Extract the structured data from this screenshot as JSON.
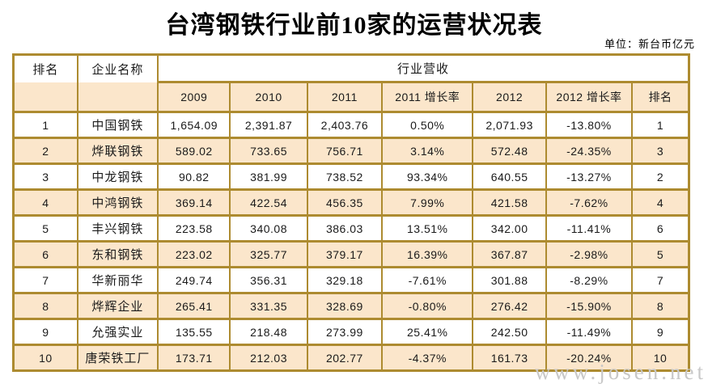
{
  "title": "台湾钢铁行业前10家的运营状况表",
  "unit_note": "单位：新台币亿元",
  "watermark": "www.josen.net",
  "colors": {
    "border": "#AD8B30",
    "band_fill": "#FBE6CB",
    "watermark": "#C8C8C8",
    "text": "#000000"
  },
  "chart_data": {
    "type": "table",
    "title": "台湾钢铁行业前10家的运营状况表",
    "unit": "新台币亿元",
    "header": {
      "rank_label": "排名",
      "company_label": "企业名称",
      "revenue_group_label": "行业营收",
      "rank_right_label": "排名",
      "columns": [
        "2009",
        "2010",
        "2011",
        "2011 增长率",
        "2012",
        "2012 增长率",
        "排名"
      ]
    },
    "rows": [
      {
        "rank": "1",
        "company": "中国钢铁",
        "values": [
          "1,654.09",
          "2,391.87",
          "2,403.76",
          "0.50%",
          "2,071.93",
          "-13.80%",
          "1"
        ]
      },
      {
        "rank": "2",
        "company": "烨联钢铁",
        "values": [
          "589.02",
          "733.65",
          "756.71",
          "3.14%",
          "572.48",
          "-24.35%",
          "3"
        ]
      },
      {
        "rank": "3",
        "company": "中龙钢铁",
        "values": [
          "90.82",
          "381.99",
          "738.52",
          "93.34%",
          "640.55",
          "-13.27%",
          "2"
        ]
      },
      {
        "rank": "4",
        "company": "中鸿钢铁",
        "values": [
          "369.14",
          "422.54",
          "456.35",
          "7.99%",
          "421.58",
          "-7.62%",
          "4"
        ]
      },
      {
        "rank": "5",
        "company": "丰兴钢铁",
        "values": [
          "223.58",
          "340.08",
          "386.03",
          "13.51%",
          "342.00",
          "-11.41%",
          "6"
        ]
      },
      {
        "rank": "6",
        "company": "东和钢铁",
        "values": [
          "223.02",
          "325.77",
          "379.17",
          "16.39%",
          "367.87",
          "-2.98%",
          "5"
        ]
      },
      {
        "rank": "7",
        "company": "华新丽华",
        "values": [
          "249.74",
          "356.31",
          "329.18",
          "-7.61%",
          "301.88",
          "-8.29%",
          "7"
        ]
      },
      {
        "rank": "8",
        "company": "烨辉企业",
        "values": [
          "265.41",
          "331.35",
          "328.69",
          "-0.80%",
          "276.42",
          "-15.90%",
          "8"
        ]
      },
      {
        "rank": "9",
        "company": "允强实业",
        "values": [
          "135.55",
          "218.48",
          "273.99",
          "25.41%",
          "242.50",
          "-11.49%",
          "9"
        ]
      },
      {
        "rank": "10",
        "company": "唐荣铁工厂",
        "values": [
          "173.71",
          "212.03",
          "202.77",
          "-4.37%",
          "161.73",
          "-20.24%",
          "10"
        ]
      }
    ]
  }
}
